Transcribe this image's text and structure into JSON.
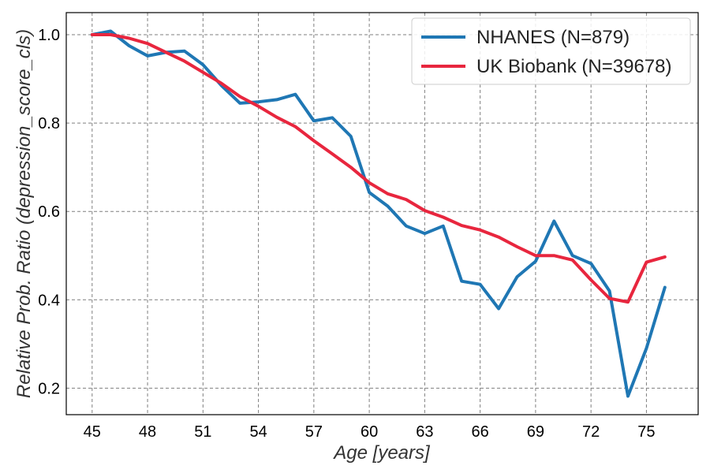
{
  "chart_data": {
    "type": "line",
    "title": "",
    "xlabel": "Age [years]",
    "ylabel": "Relative Prob. Ratio (depression_score_cls)",
    "xlim": [
      43.6,
      77.8
    ],
    "ylim": [
      0.14,
      1.05
    ],
    "xticks": [
      "45",
      "48",
      "51",
      "54",
      "57",
      "60",
      "63",
      "66",
      "69",
      "72",
      "75"
    ],
    "yticks": [
      "0.2",
      "0.4",
      "0.6",
      "0.8",
      "1.0"
    ],
    "grid": true,
    "legend_position": "top-right",
    "x": [
      45,
      46,
      47,
      48,
      49,
      50,
      51,
      52,
      53,
      54,
      55,
      56,
      57,
      58,
      59,
      60,
      61,
      62,
      63,
      64,
      65,
      66,
      67,
      68,
      69,
      70,
      71,
      72,
      73,
      74,
      75,
      76
    ],
    "series": [
      {
        "name": "NHANES (N=879)",
        "color": "#1f77b4",
        "values": [
          1.0,
          1.008,
          0.975,
          0.952,
          0.96,
          0.963,
          0.932,
          0.885,
          0.845,
          0.848,
          0.853,
          0.865,
          0.805,
          0.812,
          0.77,
          0.643,
          0.612,
          0.567,
          0.55,
          0.567,
          0.442,
          0.435,
          0.38,
          0.452,
          0.487,
          0.578,
          0.5,
          0.482,
          0.42,
          0.182,
          0.29,
          0.428
        ]
      },
      {
        "name": "UK Biobank (N=39678)",
        "color": "#e8263e",
        "values": [
          1.0,
          1.0,
          0.992,
          0.98,
          0.96,
          0.94,
          0.915,
          0.89,
          0.86,
          0.838,
          0.813,
          0.792,
          0.76,
          0.73,
          0.7,
          0.665,
          0.64,
          0.627,
          0.602,
          0.587,
          0.568,
          0.558,
          0.542,
          0.52,
          0.5,
          0.5,
          0.49,
          0.445,
          0.403,
          0.395,
          0.485,
          0.497
        ]
      }
    ]
  }
}
